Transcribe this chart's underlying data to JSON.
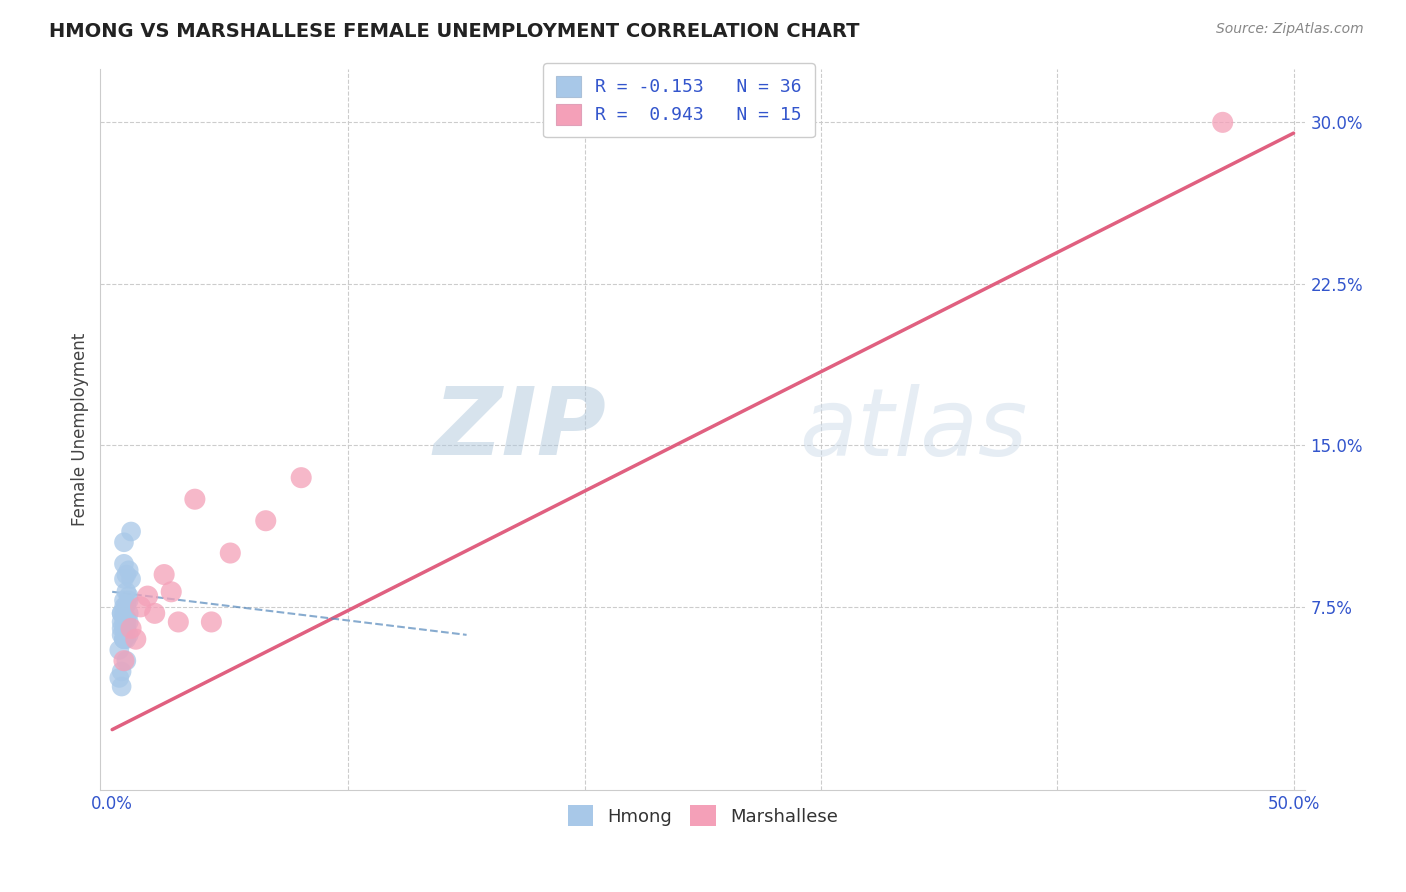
{
  "title": "HMONG VS MARSHALLESE FEMALE UNEMPLOYMENT CORRELATION CHART",
  "source_text": "Source: ZipAtlas.com",
  "ylabel": "Female Unemployment",
  "xlim": [
    -0.005,
    0.505
  ],
  "ylim": [
    -0.01,
    0.325
  ],
  "hmong_R": -0.153,
  "hmong_N": 36,
  "marshallese_R": 0.943,
  "marshallese_N": 15,
  "hmong_color": "#a8c8e8",
  "marshallese_color": "#f4a0b8",
  "hmong_line_color": "#5588bb",
  "marshallese_line_color": "#e06080",
  "background_color": "#ffffff",
  "grid_color": "#cccccc",
  "legend_text_color": "#3355cc",
  "title_color": "#222222",
  "source_color": "#888888",
  "tick_color_y": "#3355cc",
  "tick_color_x": "#3355cc",
  "watermark_color": "#c8d8e8",
  "hmong_x": [
    0.005,
    0.008,
    0.005,
    0.006,
    0.007,
    0.005,
    0.006,
    0.008,
    0.007,
    0.005,
    0.004,
    0.006,
    0.005,
    0.007,
    0.005,
    0.006,
    0.004,
    0.005,
    0.007,
    0.006,
    0.005,
    0.004,
    0.006,
    0.005,
    0.007,
    0.004,
    0.005,
    0.006,
    0.004,
    0.007,
    0.003,
    0.005,
    0.004,
    0.006,
    0.003,
    0.004
  ],
  "hmong_y": [
    0.105,
    0.11,
    0.095,
    0.09,
    0.08,
    0.075,
    0.082,
    0.088,
    0.092,
    0.078,
    0.072,
    0.076,
    0.068,
    0.072,
    0.088,
    0.07,
    0.065,
    0.072,
    0.068,
    0.065,
    0.06,
    0.062,
    0.068,
    0.06,
    0.078,
    0.072,
    0.065,
    0.06,
    0.068,
    0.062,
    0.055,
    0.06,
    0.045,
    0.05,
    0.042,
    0.038
  ],
  "marshallese_x": [
    0.005,
    0.008,
    0.01,
    0.012,
    0.015,
    0.018,
    0.022,
    0.025,
    0.028,
    0.035,
    0.042,
    0.05,
    0.065,
    0.08,
    0.47
  ],
  "marshallese_y": [
    0.05,
    0.065,
    0.06,
    0.075,
    0.08,
    0.072,
    0.09,
    0.082,
    0.068,
    0.125,
    0.068,
    0.1,
    0.115,
    0.135,
    0.3
  ],
  "marsh_line_x0": 0.0,
  "marsh_line_y0": 0.018,
  "marsh_line_x1": 0.5,
  "marsh_line_y1": 0.295,
  "hmong_line_x0": 0.0,
  "hmong_line_y0": 0.082,
  "hmong_line_x1": 0.15,
  "hmong_line_y1": 0.062
}
